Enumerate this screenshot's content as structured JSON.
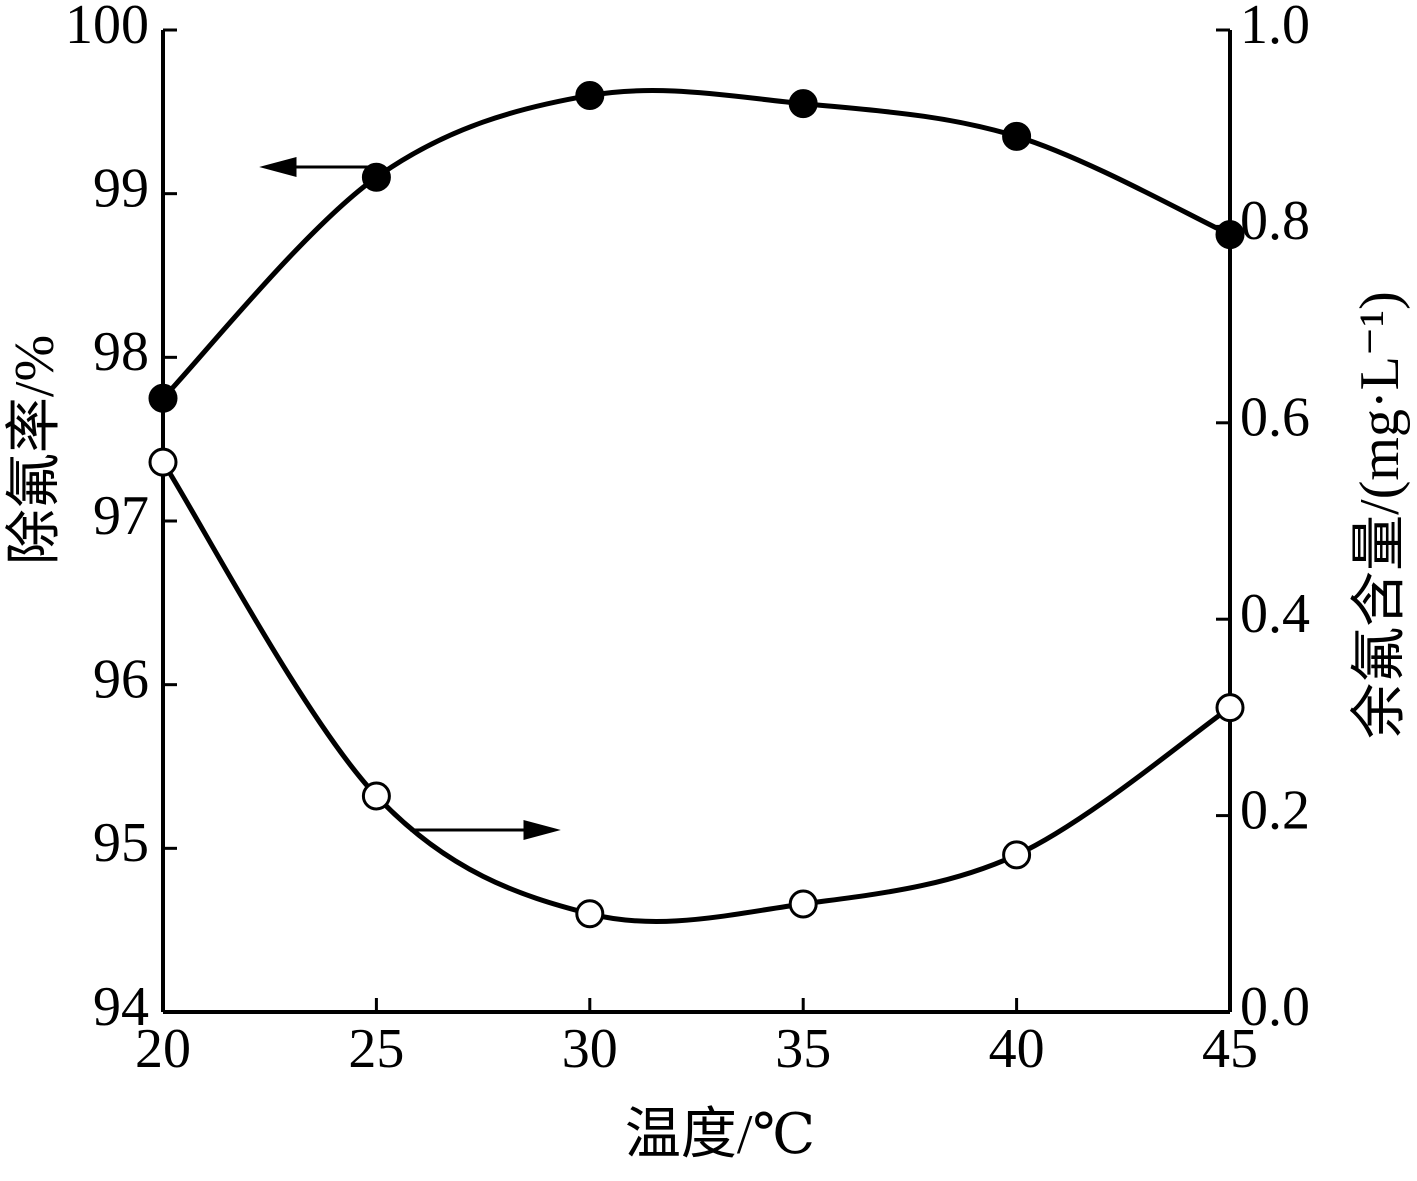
{
  "chart_data": {
    "type": "line",
    "x_label": "温度/℃",
    "y_label": "除氟率/%",
    "y2_label": "余氟含量/(mg·L⁻¹)",
    "x": [
      20,
      25,
      30,
      35,
      40,
      45
    ],
    "xlim": [
      20,
      45
    ],
    "xticks": [
      20,
      25,
      30,
      35,
      40,
      45
    ],
    "ylim": [
      94,
      100
    ],
    "yticks": [
      94,
      95,
      96,
      97,
      98,
      99,
      100
    ],
    "y2lim": [
      0,
      1
    ],
    "y2ticks": [
      {
        "value": 0,
        "label": "0.0"
      },
      0.2,
      0.4,
      0.6,
      0.8,
      {
        "value": 1,
        "label": "1.0"
      }
    ],
    "smooth": true,
    "series": [
      {
        "color": "#000000",
        "marker": "filled",
        "values": [
          97.75,
          99.1,
          99.6,
          99.55,
          99.35,
          98.75
        ]
      },
      {
        "color": "#000000",
        "marker": "open",
        "axis": "y2",
        "values": [
          0.56,
          0.22,
          0.1,
          0.11,
          0.16,
          0.31
        ]
      }
    ]
  }
}
